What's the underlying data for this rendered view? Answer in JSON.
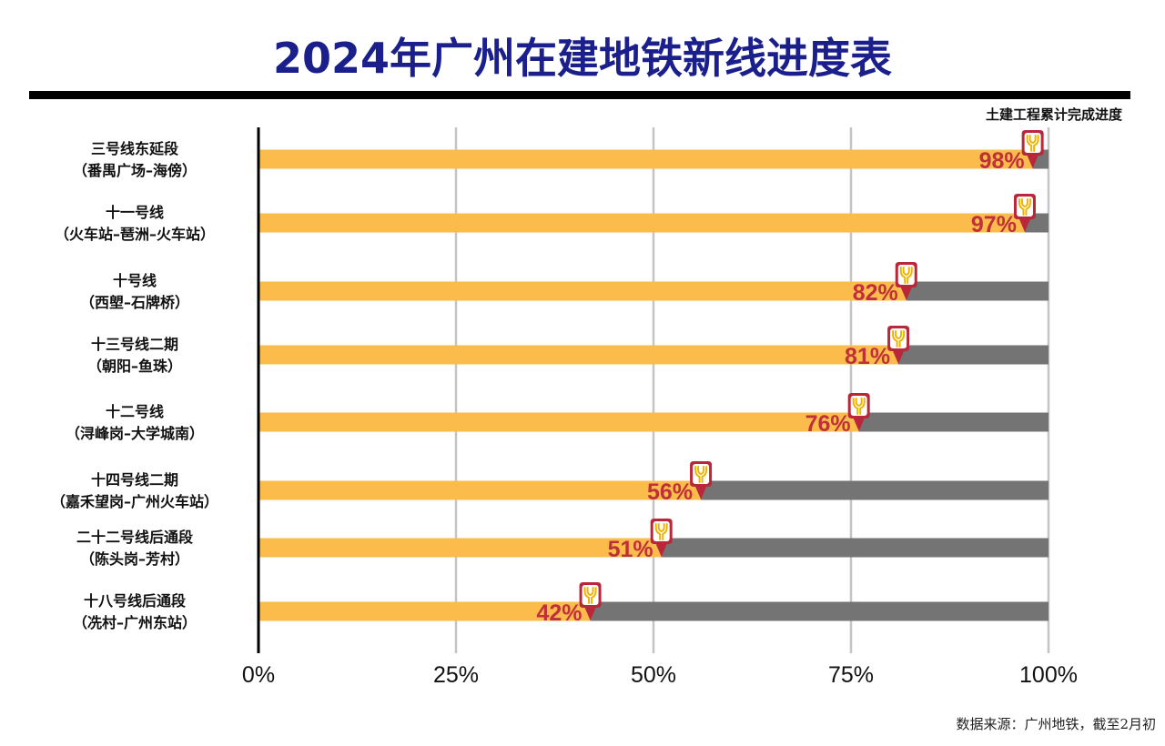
{
  "title": "2024年广州在建地铁新线进度表",
  "source": "数据来源：广州地铁，截至2月初",
  "colors": {
    "done": "#fbbc4c",
    "remaining": "#747474",
    "label": "#c0303a",
    "marker": "#b8283a",
    "title": "#1a1f8c",
    "marker_logo": "#f0b400"
  },
  "marker_icon": "metro-logo-pin-icon",
  "chart_data": {
    "type": "bar",
    "orientation": "horizontal",
    "legend_label": "土建工程累计完成进度",
    "categories": [
      {
        "name": "三号线东延段",
        "section": "（番禺广场–海傍）"
      },
      {
        "name": "十一号线",
        "section": "（火车站–琶洲–火车站）"
      },
      {
        "name": "十号线",
        "section": "（西塱–石牌桥）"
      },
      {
        "name": "十三号线二期",
        "section": "（朝阳–鱼珠）"
      },
      {
        "name": "十二号线",
        "section": "（浔峰岗–大学城南）"
      },
      {
        "name": "十四号线二期",
        "section": "（嘉禾望岗–广州火车站）"
      },
      {
        "name": "二十二号线后通段",
        "section": "（陈头岗–芳村）"
      },
      {
        "name": "十八号线后通段",
        "section": "（冼村–广州东站）"
      }
    ],
    "values": [
      98,
      97,
      82,
      81,
      76,
      56,
      51,
      42
    ],
    "value_labels": [
      "98%",
      "97%",
      "82%",
      "81%",
      "76%",
      "56%",
      "51%",
      "42%"
    ],
    "xlim": [
      0,
      100
    ],
    "xticks": [
      0,
      25,
      50,
      75,
      100
    ],
    "xtick_labels": [
      "0%",
      "25%",
      "50%",
      "75%",
      "100%"
    ],
    "grid": "vertical"
  }
}
